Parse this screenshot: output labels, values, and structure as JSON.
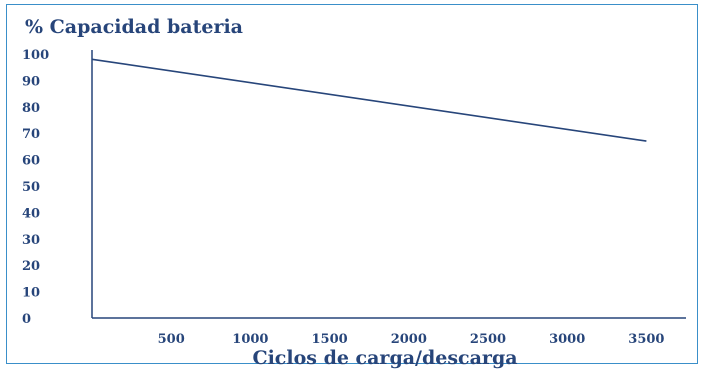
{
  "chart_data": {
    "type": "line",
    "title": "% Capacidad bateria",
    "xlabel": "Ciclos de carga/descarga",
    "ylabel": "",
    "xlim": [
      0,
      3750
    ],
    "ylim": [
      0,
      100
    ],
    "x_ticks": [
      500,
      1000,
      1500,
      2000,
      2500,
      3000,
      3500
    ],
    "x_tick_labels": [
      "500",
      "1000",
      "1500",
      "2000",
      "2500",
      "3000",
      "3500"
    ],
    "y_ticks": [
      0,
      10,
      20,
      30,
      40,
      50,
      60,
      70,
      80,
      90,
      100
    ],
    "y_tick_labels": [
      "0",
      "10",
      "20",
      "30",
      "40",
      "50",
      "60",
      "70",
      "80",
      "90",
      "100"
    ],
    "grid": false,
    "series": [
      {
        "x": [
          0,
          3500
        ],
        "y": [
          98,
          67
        ]
      }
    ],
    "colors": {
      "text": "#27457a",
      "line": "#27457a",
      "axis": "#27457a",
      "frame": "#3a8fc9"
    }
  }
}
